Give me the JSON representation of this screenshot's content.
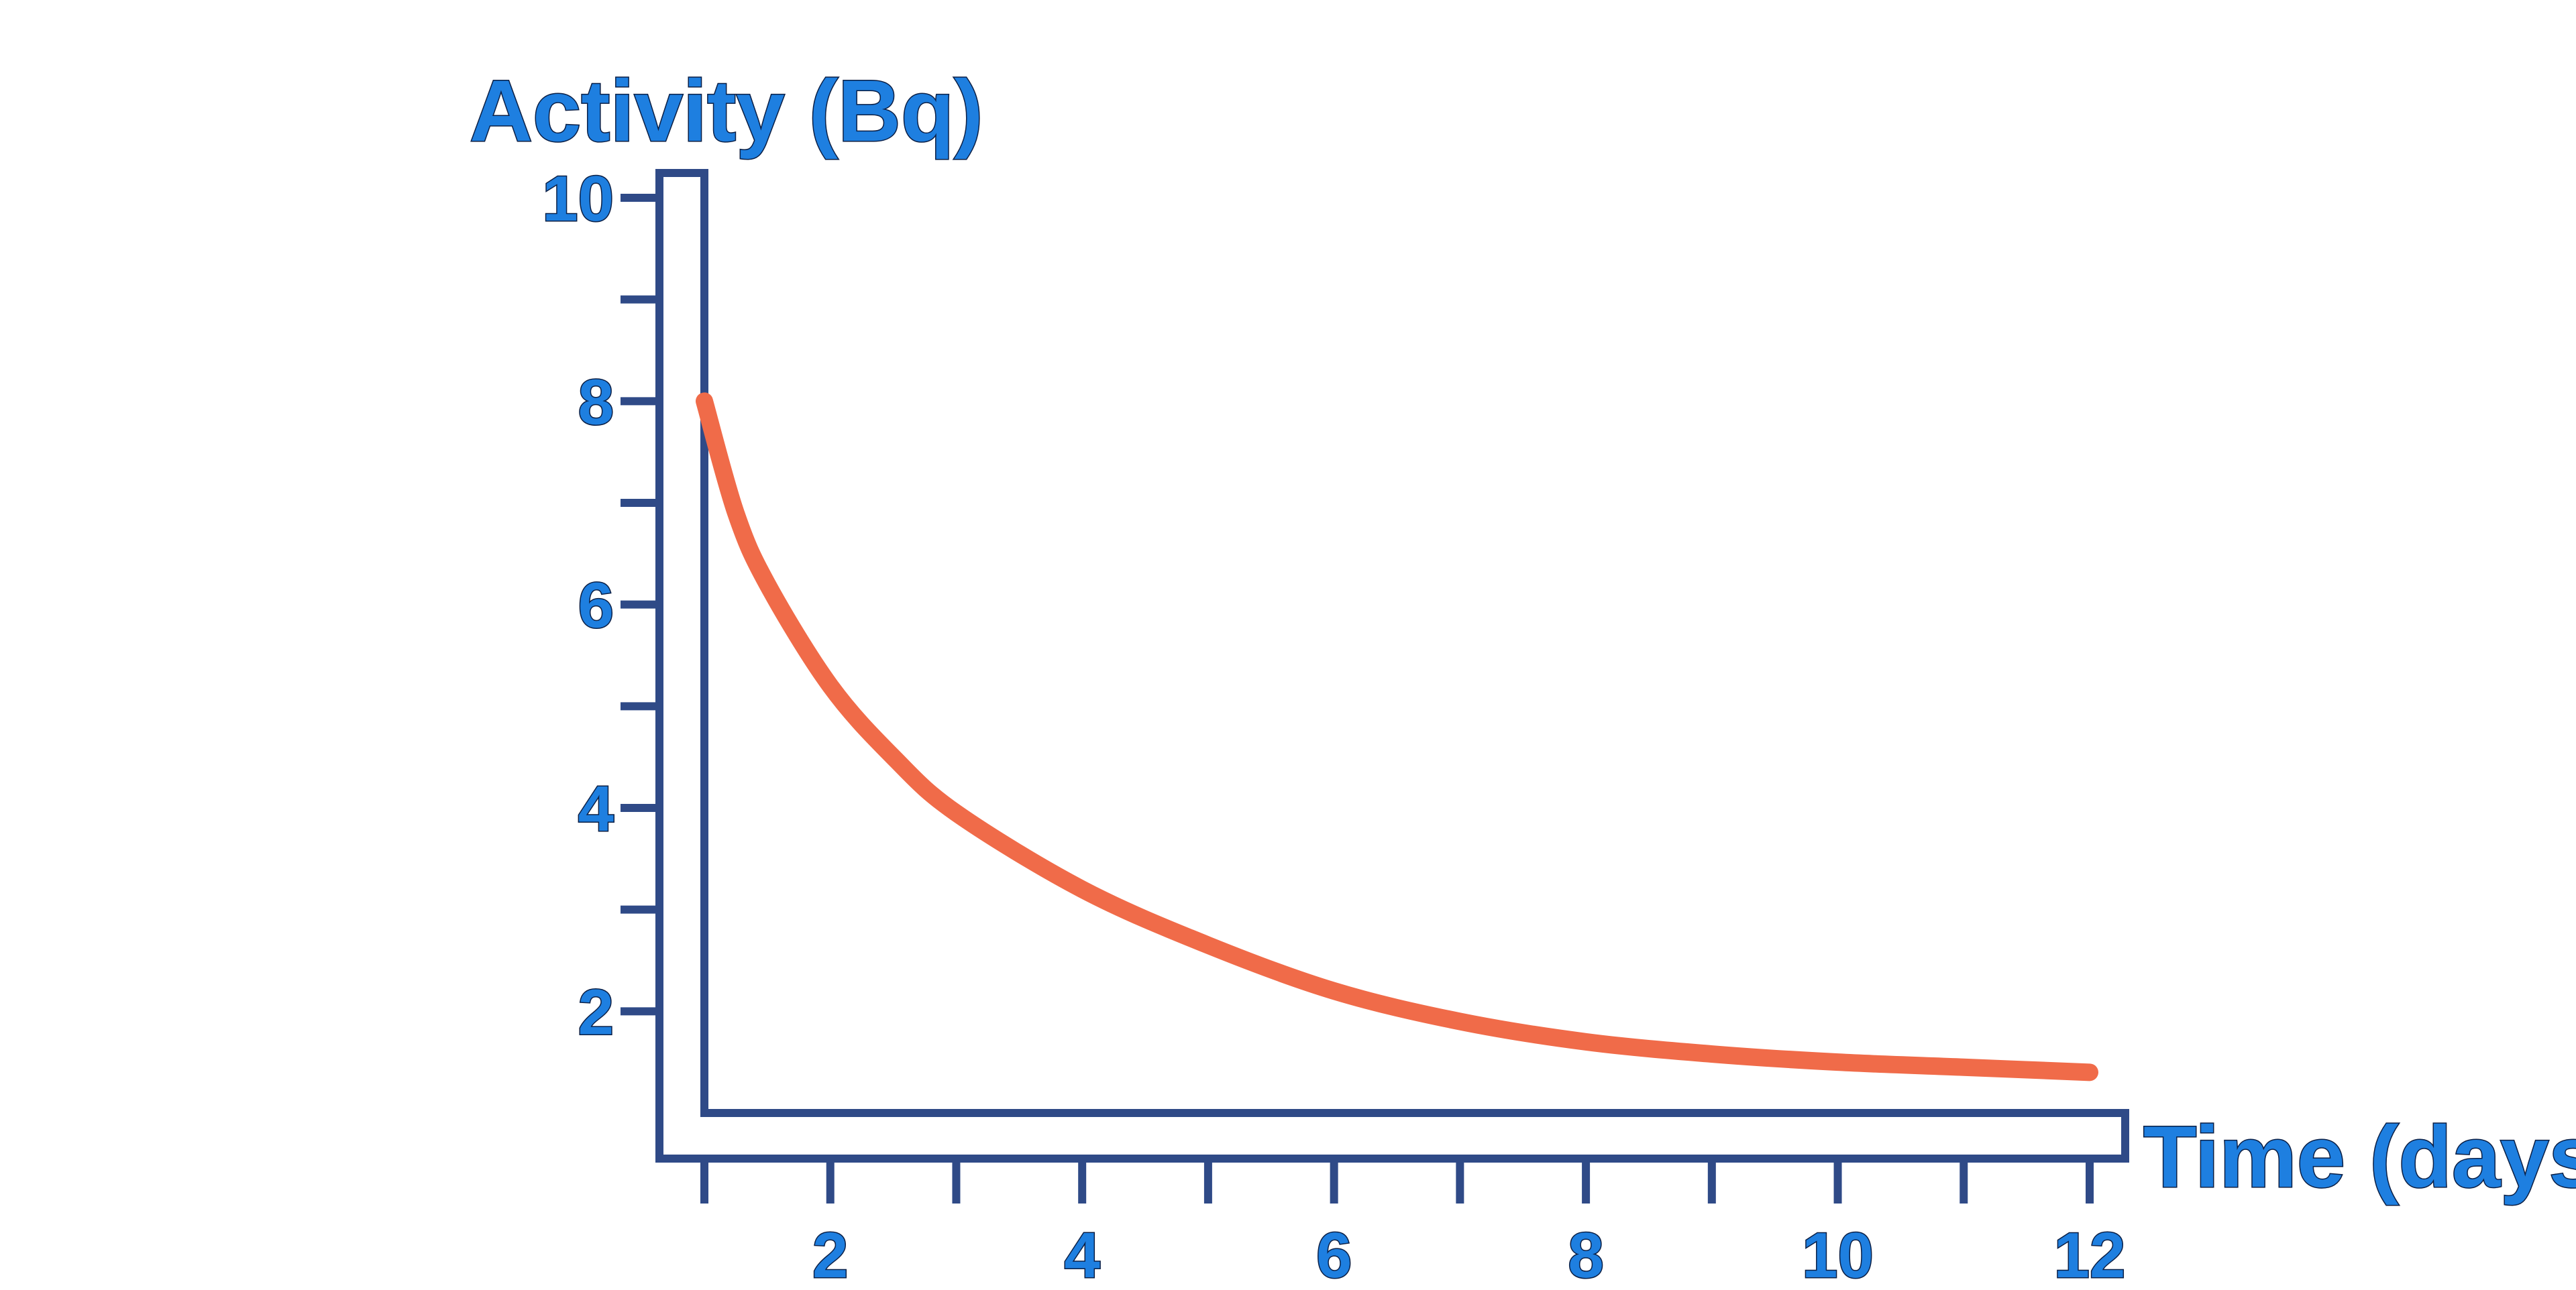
{
  "chart_data": {
    "type": "line",
    "title": "",
    "ylabel": "Activity (Bq)",
    "xlabel": "Time (days)",
    "xlim": [
      1,
      12
    ],
    "ylim": [
      1,
      10
    ],
    "x_tick_labels": [
      "2",
      "4",
      "6",
      "8",
      "10",
      "12"
    ],
    "y_tick_labels": [
      "10",
      "8",
      "6",
      "4",
      "2"
    ],
    "grid": false,
    "legend": "none",
    "series": [
      {
        "x": [
          1,
          1.25,
          1.5,
          2,
          2.5,
          3,
          4,
          5,
          6,
          7,
          8,
          9,
          10,
          11,
          12
        ],
        "y": [
          8,
          6.9,
          6.2,
          5.2,
          4.5,
          3.95,
          3.2,
          2.65,
          2.2,
          1.9,
          1.7,
          1.58,
          1.5,
          1.45,
          1.4
        ]
      }
    ],
    "colors": {
      "axis": "#2f4a87",
      "curve": "#f06b49",
      "label_fill": "#1e7fe0",
      "label_outline": "#0b1f45"
    }
  }
}
